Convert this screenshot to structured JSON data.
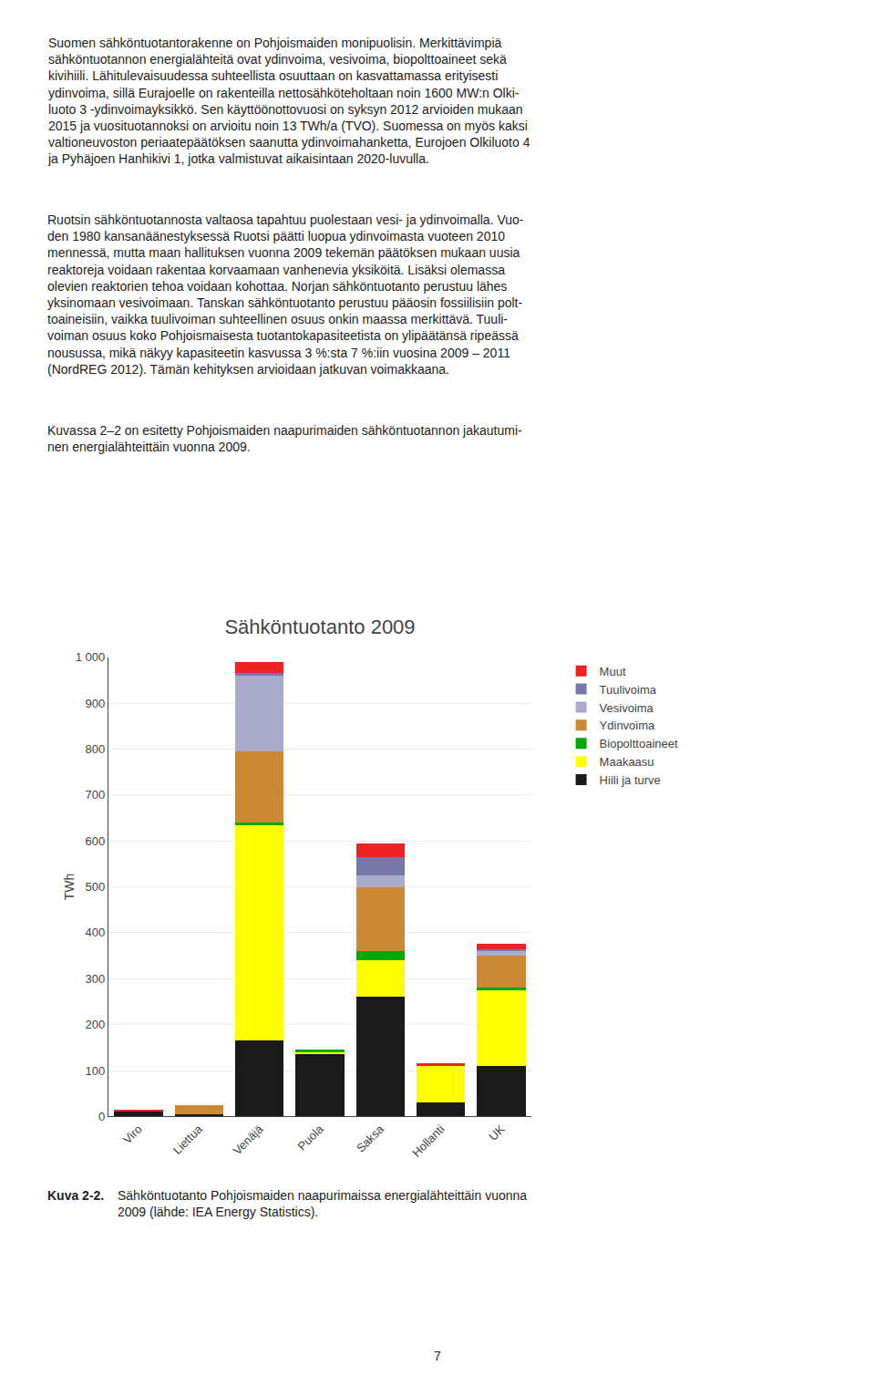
{
  "chart_data": {
    "type": "bar",
    "stacked": true,
    "title": "Sähköntuotanto 2009",
    "ylabel": "TWh",
    "categories": [
      "Viro",
      "Liettua",
      "Venäjä",
      "Puola",
      "Saksa",
      "Hollanti",
      "UK"
    ],
    "series": [
      {
        "name": "Hiili ja turve",
        "color": "#1a1a1a",
        "values": [
          10,
          4,
          165,
          135,
          260,
          30,
          110
        ]
      },
      {
        "name": "Maakaasu",
        "color": "#ffff00",
        "values": [
          0,
          0,
          470,
          5,
          80,
          80,
          165
        ]
      },
      {
        "name": "Biopolttoaineet",
        "color": "#00aa00",
        "values": [
          0,
          0,
          5,
          5,
          20,
          0,
          5
        ]
      },
      {
        "name": "Ydinvoima",
        "color": "#cc8833",
        "values": [
          0,
          20,
          155,
          0,
          140,
          0,
          70
        ]
      },
      {
        "name": "Vesivoima",
        "color": "#aaaacc",
        "values": [
          0,
          0,
          165,
          0,
          25,
          0,
          10
        ]
      },
      {
        "name": "Tuulivoima",
        "color": "#7777aa",
        "values": [
          0,
          0,
          5,
          0,
          40,
          0,
          5
        ]
      },
      {
        "name": "Muut",
        "color": "#ee2222",
        "values": [
          5,
          0,
          25,
          0,
          30,
          5,
          10
        ]
      }
    ],
    "ylim": [
      0,
      1000
    ],
    "yticks": [
      0,
      100,
      200,
      300,
      400,
      500,
      600,
      700,
      800,
      900,
      {
        "value": 1000,
        "label": "1 000"
      }
    ],
    "grid": true,
    "legend": "right",
    "annotations": [
      "Suomen sähköntuotantorakenne on Pohjoismaiden monipuolisin. Merkittävimpiä\nsähköntuotannon energialähteitä ovat ydinvoima, vesivoima, biopolttoaineet sekä\nkivihiili. Lähitulevaisuudessa suhteellista osuuttaan on kasvattamassa erityisesti\nydinvoima, sillä Eurajoelle on rakenteilla nettosähköteholtaan noin 1600 MW:n Olki-\nluoto 3 -ydinvoimayksikkö. Sen käyttöönottovuosi on syksyn 2012 arvioiden mukaan\n2015 ja vuosituotannoksi on arvioitu noin 13 TWh/a (TVO). Suomessa on myös kaksi\nvaltioneuvoston periaatepäätöksen saanutta ydinvoimahanketta, Eurojoen Olkiluoto 4\nja Pyhäjoen Hanhikivi 1, jotka valmistuvat aikaisintaan 2020-luvulla.",
      "Ruotsin sähköntuotannosta valtaosa tapahtuu puolestaan vesi- ja ydinvoimalla. Vuo-\nden 1980 kansanäänestyksessä Ruotsi päätti luopua ydinvoimasta vuoteen 2010\nmennessä, mutta maan hallituksen vuonna 2009 tekemän päätöksen mukaan uusia\nreaktoreja voidaan rakentaa korvaamaan vanhenevia yksiköitä. Lisäksi olemassa\nolevien reaktorien tehoa voidaan kohottaa. Norjan sähköntuotanto perustuu lähes\nyksinomaan vesivoimaan. Tanskan sähköntuotanto perustuu pääosin fossiilisiin polt-\ntoaineisiin, vaikka tuulivoiman suhteellinen osuus onkin maassa merkittävä. Tuuli-\nvoiman osuus koko Pohjoismaisesta tuotantokapasiteetista on ylipäätänsä ripeässä\nnousussa, mikä näkyy kapasiteetin kasvussa 3 %:sta 7 %:iin vuosina 2009 – 2011\n(NordREG 2012). Tämän kehityksen arvioidaan jatkuvan voimakkaana.",
      "Kuvassa 2–2 on esitetty Pohjoismaiden naapurimaiden sähköntuotannon jakautumi-\nnen energialähteittäin vuonna 2009.",
      "Kuva 2-2.",
      "Sähköntuotanto Pohjoismaiden naapurimaissa energialähteittäin vuonna\n2009 (lähde: IEA Energy Statistics).",
      "7"
    ]
  }
}
